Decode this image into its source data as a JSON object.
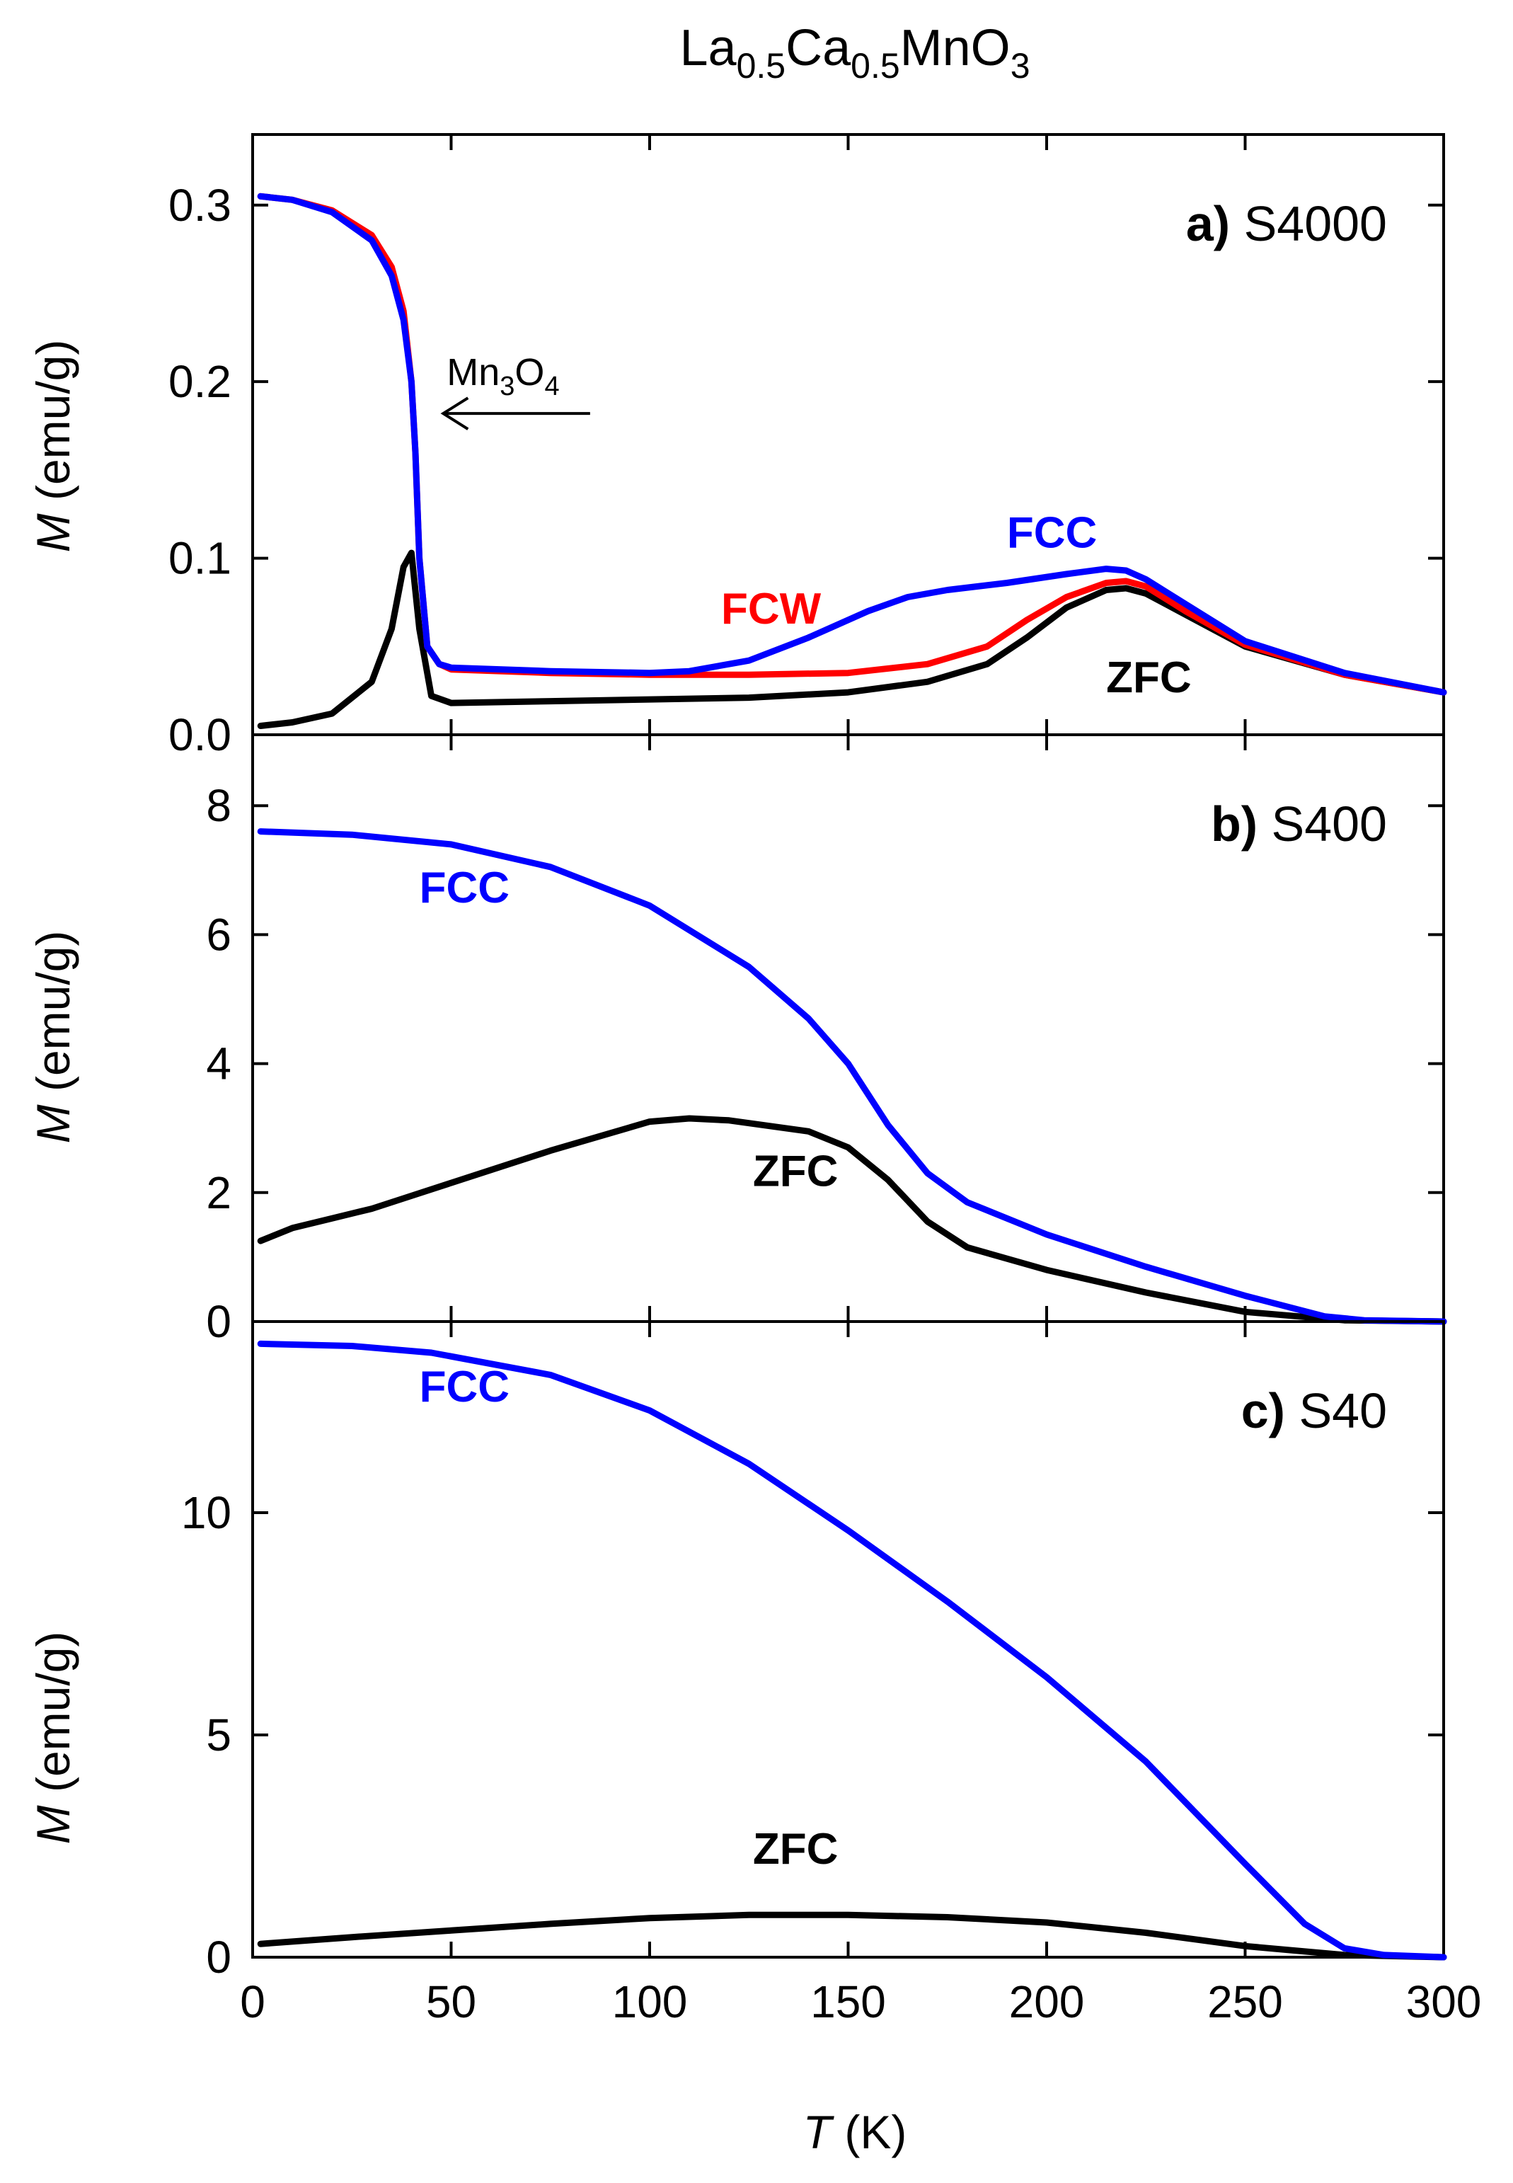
{
  "figure": {
    "title": {
      "main1": "La",
      "sub1": "0.5",
      "main2": "Ca",
      "sub2": "0.5",
      "main3": "MnO",
      "sub3": "3"
    },
    "xlabel": {
      "var": "T",
      "unit": "(K)"
    },
    "ylabel": {
      "var": "M",
      "unit": "(emu/g)"
    }
  },
  "colors": {
    "ZFC": "#000000",
    "FCW": "#ff0000",
    "FCC": "#0000ff"
  },
  "chart_data": [
    {
      "type": "line",
      "panel": "a",
      "label": {
        "letter": "a)",
        "name": "S4000"
      },
      "xlim": [
        0,
        300
      ],
      "ylim": [
        0,
        0.34
      ],
      "xticks": [
        0,
        50,
        100,
        150,
        200,
        250,
        300
      ],
      "yticks": [
        0.0,
        0.1,
        0.2,
        0.3
      ],
      "ytick_labels": [
        "0.0",
        "0.1",
        "0.2",
        "0.3"
      ],
      "annotation": {
        "main": "Mn",
        "sub1": "3",
        "mid": "O",
        "sub2": "4",
        "arrow_from_x": 85,
        "arrow_to_x": 48,
        "y": 0.2
      },
      "series": [
        {
          "name": "ZFC",
          "color": "#000000",
          "x": [
            2,
            10,
            20,
            30,
            35,
            38,
            40,
            42,
            45,
            50,
            75,
            100,
            125,
            150,
            170,
            185,
            195,
            205,
            215,
            220,
            225,
            235,
            250,
            275,
            300
          ],
          "y": [
            0.005,
            0.007,
            0.012,
            0.03,
            0.06,
            0.095,
            0.103,
            0.06,
            0.022,
            0.018,
            0.019,
            0.02,
            0.021,
            0.024,
            0.03,
            0.04,
            0.055,
            0.072,
            0.082,
            0.083,
            0.08,
            0.068,
            0.05,
            0.034,
            0.024
          ]
        },
        {
          "name": "FCW",
          "color": "#ff0000",
          "x": [
            2,
            10,
            20,
            30,
            35,
            38,
            40,
            41,
            42,
            44,
            47,
            50,
            75,
            100,
            125,
            150,
            170,
            185,
            195,
            205,
            215,
            220,
            225,
            235,
            250,
            275,
            300
          ],
          "y": [
            0.305,
            0.303,
            0.297,
            0.283,
            0.265,
            0.24,
            0.2,
            0.16,
            0.1,
            0.05,
            0.04,
            0.037,
            0.035,
            0.034,
            0.034,
            0.035,
            0.04,
            0.05,
            0.065,
            0.078,
            0.086,
            0.087,
            0.084,
            0.07,
            0.051,
            0.034,
            0.024
          ]
        },
        {
          "name": "FCC",
          "color": "#0000ff",
          "x": [
            2,
            10,
            20,
            30,
            35,
            38,
            40,
            41,
            42,
            44,
            47,
            50,
            75,
            100,
            110,
            125,
            140,
            155,
            165,
            175,
            190,
            205,
            215,
            220,
            225,
            235,
            250,
            275,
            300
          ],
          "y": [
            0.305,
            0.303,
            0.296,
            0.28,
            0.26,
            0.235,
            0.2,
            0.16,
            0.1,
            0.05,
            0.04,
            0.038,
            0.036,
            0.035,
            0.036,
            0.042,
            0.055,
            0.07,
            0.078,
            0.082,
            0.086,
            0.091,
            0.094,
            0.093,
            0.088,
            0.074,
            0.053,
            0.035,
            0.024
          ]
        }
      ],
      "curve_labels": [
        {
          "text": "FCW",
          "color": "#ff0000",
          "x": 118,
          "y": 0.063
        },
        {
          "text": "FCC",
          "color": "#0000ff",
          "x": 190,
          "y": 0.106
        },
        {
          "text": "ZFC",
          "color": "#000000",
          "x": 215,
          "y": 0.024
        }
      ]
    },
    {
      "type": "line",
      "panel": "b",
      "label": {
        "letter": "b)",
        "name": "S400"
      },
      "xlim": [
        0,
        300
      ],
      "ylim": [
        0,
        9.1
      ],
      "xticks": [
        0,
        50,
        100,
        150,
        200,
        250,
        300
      ],
      "yticks": [
        0,
        2,
        4,
        6,
        8
      ],
      "ytick_labels": [
        "0",
        "2",
        "4",
        "6",
        "8"
      ],
      "series": [
        {
          "name": "ZFC",
          "color": "#000000",
          "x": [
            2,
            10,
            20,
            30,
            40,
            50,
            75,
            100,
            110,
            120,
            140,
            150,
            160,
            170,
            180,
            200,
            225,
            250,
            275,
            300
          ],
          "y": [
            1.25,
            1.45,
            1.6,
            1.75,
            1.95,
            2.15,
            2.65,
            3.1,
            3.15,
            3.12,
            2.95,
            2.7,
            2.2,
            1.55,
            1.15,
            0.8,
            0.45,
            0.15,
            0.02,
            0.0
          ]
        },
        {
          "name": "FCC",
          "color": "#0000ff",
          "x": [
            2,
            25,
            50,
            75,
            100,
            125,
            140,
            150,
            160,
            170,
            180,
            200,
            225,
            250,
            270,
            280,
            300
          ],
          "y": [
            7.6,
            7.55,
            7.4,
            7.05,
            6.45,
            5.5,
            4.7,
            4.0,
            3.05,
            2.3,
            1.85,
            1.35,
            0.85,
            0.4,
            0.08,
            0.02,
            0.0
          ]
        }
      ],
      "curve_labels": [
        {
          "text": "FCC",
          "color": "#0000ff",
          "x": 42,
          "y": 6.5
        },
        {
          "text": "ZFC",
          "color": "#000000",
          "x": 126,
          "y": 2.1
        }
      ]
    },
    {
      "type": "line",
      "panel": "c",
      "label": {
        "letter": "c)",
        "name": "S40"
      },
      "xlim": [
        0,
        300
      ],
      "ylim": [
        0,
        14.3
      ],
      "xticks": [
        0,
        50,
        100,
        150,
        200,
        250,
        300
      ],
      "yticks": [
        0,
        5,
        10
      ],
      "ytick_labels": [
        "0",
        "5",
        "10"
      ],
      "series": [
        {
          "name": "ZFC",
          "color": "#000000",
          "x": [
            2,
            25,
            50,
            75,
            100,
            125,
            150,
            175,
            200,
            225,
            250,
            275,
            300
          ],
          "y": [
            0.3,
            0.45,
            0.6,
            0.75,
            0.88,
            0.95,
            0.95,
            0.9,
            0.78,
            0.55,
            0.25,
            0.05,
            0.0
          ]
        },
        {
          "name": "FCC",
          "color": "#0000ff",
          "x": [
            2,
            25,
            45,
            75,
            100,
            125,
            150,
            175,
            200,
            225,
            250,
            265,
            275,
            285,
            300
          ],
          "y": [
            13.8,
            13.75,
            13.6,
            13.1,
            12.3,
            11.1,
            9.6,
            8.0,
            6.3,
            4.4,
            2.1,
            0.75,
            0.2,
            0.05,
            0.0
          ]
        }
      ],
      "curve_labels": [
        {
          "text": "FCC",
          "color": "#0000ff",
          "x": 42,
          "y": 12.5
        },
        {
          "text": "ZFC",
          "color": "#000000",
          "x": 126,
          "y": 2.1
        }
      ]
    }
  ]
}
